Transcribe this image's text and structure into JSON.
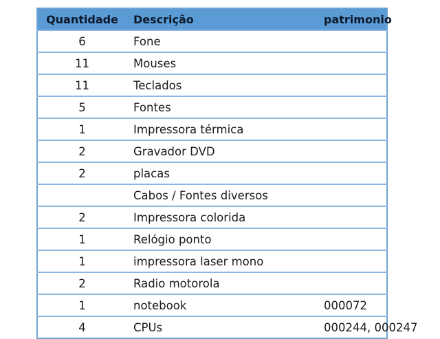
{
  "headers": {
    "quantidade": "Quantidade",
    "descricao": "Descrição",
    "patrimonio": "patrimonio"
  },
  "rows": [
    {
      "qty": "6",
      "desc": "Fone",
      "pat": ""
    },
    {
      "qty": "11",
      "desc": "Mouses",
      "pat": ""
    },
    {
      "qty": "11",
      "desc": "Teclados",
      "pat": ""
    },
    {
      "qty": "5",
      "desc": "Fontes",
      "pat": ""
    },
    {
      "qty": "1",
      "desc": "Impressora térmica",
      "pat": ""
    },
    {
      "qty": "2",
      "desc": "Gravador DVD",
      "pat": ""
    },
    {
      "qty": "2",
      "desc": "placas",
      "pat": ""
    },
    {
      "qty": "",
      "desc": "Cabos / Fontes diversos",
      "pat": ""
    },
    {
      "qty": "2",
      "desc": "Impressora colorida",
      "pat": ""
    },
    {
      "qty": "1",
      "desc": "Relógio ponto",
      "pat": ""
    },
    {
      "qty": "1",
      "desc": "impressora laser mono",
      "pat": ""
    },
    {
      "qty": "2",
      "desc": "Radio motorola",
      "pat": ""
    },
    {
      "qty": "1",
      "desc": "notebook",
      "pat": "000072"
    },
    {
      "qty": "4",
      "desc": "CPUs",
      "pat": "000244, 000247"
    }
  ],
  "colors": {
    "header": "#5b9bd5",
    "border": "#8db7e2"
  }
}
